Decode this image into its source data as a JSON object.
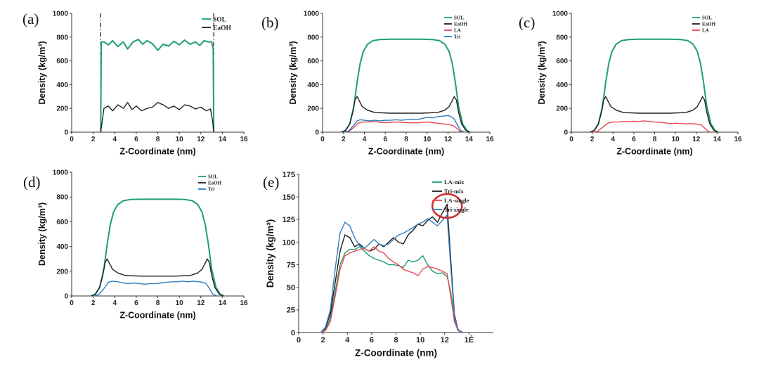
{
  "chart_data": [
    {
      "panel": "(a)",
      "type": "line",
      "xlabel": "Z-Coordinate (nm)",
      "ylabel": "Density (kg/m³)",
      "xlim": [
        0,
        16
      ],
      "ylim": [
        0,
        1000
      ],
      "xticks": [
        0,
        2,
        4,
        6,
        8,
        10,
        12,
        14,
        16
      ],
      "yticks": [
        0,
        200,
        400,
        600,
        800,
        1000
      ],
      "legend": [
        "SOL",
        "EaOH"
      ],
      "vertical_lines": [
        2.7,
        13.2
      ],
      "series": [
        {
          "name": "SOL",
          "color": "#1f9e6e",
          "x": [
            2.7,
            2.75,
            3.0,
            3.4,
            3.8,
            4.3,
            4.8,
            5.2,
            5.7,
            6.2,
            6.6,
            7.0,
            7.5,
            8.0,
            8.5,
            9.0,
            9.5,
            10.0,
            10.5,
            11.0,
            11.5,
            11.9,
            12.3,
            12.7,
            13.0,
            13.15,
            13.2
          ],
          "y": [
            0,
            760,
            760,
            735,
            770,
            720,
            760,
            700,
            760,
            780,
            740,
            770,
            745,
            690,
            740,
            725,
            765,
            735,
            775,
            740,
            760,
            730,
            770,
            760,
            760,
            700,
            0
          ]
        },
        {
          "name": "EaOH",
          "color": "#222222",
          "x": [
            2.7,
            3.0,
            3.4,
            3.8,
            4.3,
            4.8,
            5.2,
            5.6,
            6.0,
            6.5,
            7.0,
            7.5,
            8.0,
            8.5,
            9.0,
            9.5,
            10.0,
            10.5,
            11.0,
            11.5,
            12.0,
            12.5,
            12.9,
            13.1,
            13.2
          ],
          "y": [
            0,
            200,
            220,
            180,
            230,
            200,
            250,
            190,
            220,
            180,
            200,
            210,
            250,
            230,
            200,
            220,
            190,
            230,
            220,
            195,
            210,
            180,
            195,
            90,
            0
          ]
        }
      ]
    },
    {
      "panel": "(b)",
      "type": "line",
      "xlabel": "Z-Coordinate (nm)",
      "ylabel": "Density (kg/m³)",
      "xlim": [
        0,
        16
      ],
      "ylim": [
        0,
        1000
      ],
      "xticks": [
        0,
        2,
        4,
        6,
        8,
        10,
        12,
        14,
        16
      ],
      "yticks": [
        0,
        200,
        400,
        600,
        800,
        1000
      ],
      "legend": [
        "SOL",
        "EaOH",
        "LA",
        "Tri"
      ],
      "series": [
        {
          "name": "SOL",
          "color": "#1f9e6e",
          "x": [
            1.8,
            2.2,
            2.6,
            3.0,
            3.3,
            3.6,
            3.9,
            4.3,
            4.8,
            5.5,
            6.5,
            8.0,
            9.5,
            10.5,
            11.2,
            11.7,
            12.1,
            12.4,
            12.7,
            13.0,
            13.4,
            13.8,
            14.1
          ],
          "y": [
            0,
            15,
            70,
            220,
            420,
            580,
            680,
            740,
            770,
            780,
            782,
            782,
            782,
            780,
            770,
            740,
            680,
            580,
            420,
            220,
            70,
            15,
            0
          ]
        },
        {
          "name": "EaOH",
          "color": "#222222",
          "x": [
            1.8,
            2.2,
            2.6,
            2.9,
            3.1,
            3.3,
            3.5,
            3.8,
            4.3,
            5.0,
            6.5,
            8.0,
            9.5,
            11.0,
            11.7,
            12.1,
            12.4,
            12.6,
            12.8,
            13.0,
            13.3,
            13.7,
            14.1
          ],
          "y": [
            0,
            15,
            70,
            170,
            270,
            300,
            265,
            215,
            185,
            165,
            160,
            160,
            160,
            165,
            185,
            215,
            265,
            300,
            270,
            170,
            70,
            15,
            0
          ]
        },
        {
          "name": "LA",
          "color": "#e8484e",
          "x": [
            2.0,
            2.5,
            3.0,
            3.4,
            3.8,
            4.3,
            5.0,
            5.5,
            6.0,
            7.0,
            8.0,
            9.0,
            10.0,
            10.5,
            11.0,
            11.5,
            12.0,
            12.5,
            12.8,
            13.1,
            13.4
          ],
          "y": [
            0,
            5,
            40,
            75,
            85,
            85,
            90,
            82,
            80,
            85,
            80,
            78,
            85,
            80,
            75,
            70,
            65,
            55,
            35,
            10,
            0
          ]
        },
        {
          "name": "Tri",
          "color": "#2e7dc2",
          "x": [
            2.0,
            2.5,
            3.0,
            3.3,
            3.6,
            4.0,
            4.5,
            5.0,
            5.5,
            6.0,
            6.5,
            7.0,
            7.5,
            8.0,
            8.5,
            9.0,
            9.5,
            10.0,
            10.5,
            11.0,
            11.5,
            12.0,
            12.3,
            12.6,
            12.9,
            13.2,
            13.6
          ],
          "y": [
            0,
            10,
            60,
            95,
            105,
            100,
            95,
            100,
            95,
            100,
            100,
            105,
            100,
            105,
            110,
            105,
            115,
            125,
            120,
            130,
            135,
            140,
            130,
            110,
            60,
            15,
            0
          ]
        }
      ]
    },
    {
      "panel": "(c)",
      "type": "line",
      "xlabel": "Z-Coordinate (nm)",
      "ylabel": "Density (kg/m³)",
      "xlim": [
        0,
        16
      ],
      "ylim": [
        0,
        1000
      ],
      "xticks": [
        0,
        2,
        4,
        6,
        8,
        10,
        12,
        14,
        16
      ],
      "yticks": [
        0,
        200,
        400,
        600,
        800,
        1000
      ],
      "legend": [
        "SOL",
        "EaOH",
        "LA"
      ],
      "series": [
        {
          "name": "SOL",
          "color": "#1f9e6e",
          "x": [
            1.8,
            2.2,
            2.6,
            3.0,
            3.3,
            3.6,
            3.9,
            4.3,
            4.8,
            5.5,
            6.5,
            8.0,
            9.5,
            10.5,
            11.2,
            11.7,
            12.1,
            12.4,
            12.7,
            13.0,
            13.4,
            13.8,
            14.1
          ],
          "y": [
            0,
            15,
            70,
            220,
            420,
            580,
            680,
            740,
            770,
            780,
            782,
            782,
            782,
            780,
            770,
            740,
            680,
            580,
            420,
            220,
            70,
            15,
            0
          ]
        },
        {
          "name": "EaOH",
          "color": "#222222",
          "x": [
            1.8,
            2.2,
            2.6,
            2.9,
            3.1,
            3.3,
            3.5,
            3.8,
            4.3,
            5.0,
            6.5,
            8.0,
            9.5,
            11.0,
            11.7,
            12.1,
            12.4,
            12.6,
            12.8,
            13.0,
            13.3,
            13.7,
            14.1
          ],
          "y": [
            0,
            15,
            70,
            170,
            270,
            300,
            265,
            215,
            185,
            165,
            160,
            160,
            160,
            165,
            185,
            215,
            265,
            300,
            270,
            170,
            70,
            15,
            0
          ]
        },
        {
          "name": "LA",
          "color": "#e8484e",
          "x": [
            2.0,
            2.5,
            3.0,
            3.5,
            4.0,
            4.5,
            5.0,
            5.5,
            6.0,
            6.5,
            7.0,
            7.5,
            8.0,
            8.5,
            9.0,
            9.5,
            10.0,
            10.5,
            11.0,
            11.5,
            12.0,
            12.5,
            12.8,
            13.1,
            13.4
          ],
          "y": [
            0,
            5,
            40,
            75,
            85,
            85,
            90,
            88,
            92,
            90,
            95,
            90,
            85,
            82,
            78,
            72,
            75,
            72,
            70,
            72,
            68,
            60,
            35,
            10,
            0
          ]
        }
      ]
    },
    {
      "panel": "(d)",
      "type": "line",
      "xlabel": "Z-Coordinate (nm)",
      "ylabel": "Density (kg/m³)",
      "xlim": [
        0,
        16
      ],
      "ylim": [
        0,
        1000
      ],
      "xticks": [
        0,
        2,
        4,
        6,
        8,
        10,
        12,
        14,
        16
      ],
      "yticks": [
        0,
        200,
        400,
        600,
        800,
        1000
      ],
      "legend": [
        "SOL",
        "EaOH",
        "Tri"
      ],
      "series": [
        {
          "name": "SOL",
          "color": "#1f9e6e",
          "x": [
            1.8,
            2.2,
            2.6,
            3.0,
            3.3,
            3.6,
            3.9,
            4.3,
            4.8,
            5.5,
            6.5,
            8.0,
            9.5,
            10.5,
            11.2,
            11.7,
            12.1,
            12.4,
            12.7,
            13.0,
            13.4,
            13.8,
            14.1
          ],
          "y": [
            0,
            15,
            70,
            220,
            420,
            580,
            680,
            740,
            770,
            780,
            782,
            782,
            782,
            780,
            770,
            740,
            680,
            580,
            420,
            220,
            70,
            15,
            0
          ]
        },
        {
          "name": "EaOH",
          "color": "#222222",
          "x": [
            1.8,
            2.2,
            2.6,
            2.9,
            3.1,
            3.3,
            3.5,
            3.8,
            4.3,
            5.0,
            6.5,
            8.0,
            9.5,
            11.0,
            11.7,
            12.1,
            12.4,
            12.6,
            12.8,
            13.0,
            13.3,
            13.7,
            14.1
          ],
          "y": [
            0,
            15,
            70,
            170,
            270,
            300,
            265,
            215,
            185,
            165,
            160,
            160,
            160,
            165,
            185,
            215,
            265,
            300,
            270,
            170,
            70,
            15,
            0
          ]
        },
        {
          "name": "Tri",
          "color": "#2e7dc2",
          "x": [
            2.0,
            2.5,
            3.0,
            3.4,
            3.8,
            4.3,
            4.8,
            5.3,
            5.8,
            6.3,
            6.8,
            7.3,
            7.8,
            8.3,
            8.8,
            9.3,
            9.8,
            10.3,
            10.8,
            11.3,
            11.8,
            12.2,
            12.5,
            12.8,
            13.1,
            13.5
          ],
          "y": [
            0,
            10,
            60,
            110,
            120,
            115,
            105,
            100,
            105,
            100,
            95,
            100,
            100,
            105,
            110,
            115,
            115,
            120,
            115,
            120,
            115,
            110,
            100,
            60,
            15,
            0
          ]
        }
      ]
    },
    {
      "panel": "(e)",
      "type": "line",
      "xlabel": "Z-Coordinate (nm)",
      "ylabel": "Density (kg/m³)",
      "xlim": [
        0,
        16
      ],
      "ylim": [
        0,
        175
      ],
      "xticks": [
        0,
        2,
        4,
        6,
        8,
        10,
        12,
        14
      ],
      "xtick_labels": [
        "0",
        "2",
        "4",
        "6",
        "8",
        "10",
        "12",
        "1É"
      ],
      "yticks": [
        0,
        25,
        50,
        75,
        100,
        125,
        150,
        175
      ],
      "legend": [
        "LA-mix",
        "Tri-mix",
        "LA-single",
        "Tri-single"
      ],
      "annotation": {
        "type": "circle",
        "x": 12.2,
        "y": 140
      },
      "series": [
        {
          "name": "LA-mix",
          "color": "#1f9e6e",
          "x": [
            1.8,
            2.2,
            2.6,
            3.0,
            3.4,
            3.8,
            4.2,
            4.6,
            5.0,
            5.4,
            5.8,
            6.2,
            6.6,
            7.0,
            7.4,
            7.8,
            8.2,
            8.6,
            9.0,
            9.4,
            9.8,
            10.2,
            10.6,
            11.0,
            11.4,
            11.8,
            12.2,
            12.5,
            12.8,
            13.1,
            13.5
          ],
          "y": [
            0,
            3,
            15,
            45,
            75,
            88,
            92,
            92,
            95,
            90,
            85,
            82,
            80,
            78,
            75,
            75,
            74,
            72,
            80,
            78,
            80,
            85,
            75,
            68,
            65,
            66,
            62,
            45,
            15,
            3,
            0
          ]
        },
        {
          "name": "Tri-mix",
          "color": "#1a1a1a",
          "x": [
            1.8,
            2.2,
            2.6,
            3.0,
            3.4,
            3.8,
            4.2,
            4.6,
            5.0,
            5.4,
            5.8,
            6.2,
            6.6,
            7.0,
            7.4,
            7.8,
            8.2,
            8.6,
            9.0,
            9.4,
            9.8,
            10.2,
            10.6,
            11.0,
            11.4,
            11.8,
            12.2,
            12.5,
            12.8,
            13.1,
            13.5
          ],
          "y": [
            0,
            5,
            20,
            55,
            90,
            108,
            105,
            95,
            98,
            93,
            90,
            92,
            98,
            95,
            100,
            105,
            100,
            98,
            108,
            113,
            120,
            118,
            124,
            128,
            122,
            132,
            142,
            80,
            20,
            3,
            0
          ]
        },
        {
          "name": "LA-single",
          "color": "#e8484e",
          "x": [
            1.8,
            2.2,
            2.6,
            3.0,
            3.4,
            3.8,
            4.2,
            4.6,
            5.0,
            5.4,
            5.8,
            6.2,
            6.6,
            7.0,
            7.4,
            7.8,
            8.2,
            8.6,
            9.0,
            9.4,
            9.8,
            10.2,
            10.6,
            11.0,
            11.4,
            11.8,
            12.2,
            12.5,
            12.8,
            13.1,
            13.5
          ],
          "y": [
            0,
            2,
            12,
            40,
            70,
            85,
            88,
            90,
            92,
            93,
            90,
            95,
            90,
            88,
            82,
            78,
            75,
            70,
            68,
            66,
            63,
            70,
            73,
            72,
            70,
            68,
            65,
            40,
            12,
            2,
            0
          ]
        },
        {
          "name": "Tri-single",
          "color": "#2e7dc2",
          "x": [
            1.8,
            2.2,
            2.6,
            3.0,
            3.4,
            3.8,
            4.2,
            4.6,
            5.0,
            5.4,
            5.8,
            6.2,
            6.6,
            7.0,
            7.4,
            7.8,
            8.2,
            8.6,
            9.0,
            9.4,
            9.8,
            10.2,
            10.6,
            11.0,
            11.4,
            11.8,
            12.2,
            12.5,
            12.8,
            13.1,
            13.5
          ],
          "y": [
            0,
            6,
            25,
            70,
            110,
            122,
            118,
            105,
            96,
            93,
            98,
            103,
            98,
            96,
            98,
            103,
            108,
            110,
            113,
            116,
            120,
            122,
            126,
            122,
            118,
            124,
            130,
            72,
            18,
            3,
            0
          ]
        }
      ]
    }
  ]
}
